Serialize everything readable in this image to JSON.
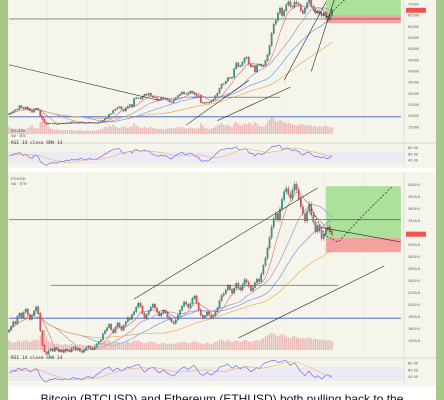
{
  "caption": "Bitcoin (BTCUSD) and Ethereum (ETHUSD) both pulling back to the",
  "colors": {
    "up": "#26a69a",
    "down": "#ef5350",
    "target_zone": "#6fcf5a",
    "stop_zone": "#f26b6b",
    "channel": "#222222",
    "hline_blue": "#3b5bc4",
    "ma_orange": "#f0a040",
    "ma_red": "#e06070",
    "ma_purple": "#9b7fd0",
    "ma_blue": "#5b8ee6",
    "rsi": "#5a5af0",
    "volume": "#e8a8a8",
    "panel_bg": "#f6f5ec"
  },
  "chart_data": [
    {
      "type": "candlestick",
      "symbol": "BTCUSD",
      "legend_lines": [
        "BTCUSD",
        "Vol · BTC"
      ],
      "rsi_label": "RSI 14 close SMA 14",
      "axis_ticks": [
        "70000",
        "65000",
        "60000",
        "55000",
        "50000",
        "45000",
        "40000",
        "35000",
        "30000",
        "25000",
        "20000",
        "15000"
      ],
      "rsi_ticks": [
        "80.00",
        "60.00",
        "40.00"
      ],
      "ylim": [
        12000,
        72000
      ],
      "closes": [
        21000,
        21500,
        22300,
        22800,
        23100,
        24600,
        23800,
        23300,
        24100,
        23100,
        22400,
        21800,
        22900,
        23500,
        22700,
        20100,
        18600,
        17200,
        16400,
        16900,
        16700,
        16800,
        16500,
        16300,
        16700,
        16900,
        16600,
        16900,
        17100,
        16800,
        17400,
        16900,
        17100,
        16800,
        17400,
        17200,
        16900,
        16900,
        17200,
        17100,
        16900,
        17000,
        16800,
        17400,
        17600,
        18100,
        18900,
        19200,
        20800,
        21100,
        22600,
        23100,
        23800,
        24200,
        23000,
        22300,
        23700,
        24400,
        25200,
        24200,
        27800,
        28300,
        28100,
        27700,
        28900,
        29800,
        29400,
        30200,
        29000,
        28400,
        28200,
        27500,
        27300,
        28300,
        27700,
        27900,
        27100,
        26400,
        26100,
        27300,
        28200,
        29200,
        29800,
        30800,
        30100,
        29900,
        30400,
        31200,
        30600,
        29800,
        29200,
        29100,
        26100,
        25800,
        26100,
        25900,
        26200,
        26800,
        27500,
        29100,
        30300,
        32400,
        34300,
        34500,
        35600,
        37200,
        36900,
        37300,
        41200,
        43800,
        42200,
        42600,
        44100,
        45900,
        46400,
        43200,
        42100,
        42600,
        39800,
        42900,
        43200,
        42400,
        42800,
        44800,
        47400,
        51500,
        57100,
        61200,
        62800,
        66100,
        68400,
        64900,
        67200,
        69800,
        71200,
        69100,
        68900,
        71100,
        70300,
        69800,
        67200,
        66100,
        68400,
        70600,
        72100,
        69200,
        67800,
        66200,
        67000,
        65800,
        64900,
        66400,
        64300,
        63200,
        65100,
        67400
      ],
      "volume": [
        12,
        10,
        9,
        8,
        7,
        11,
        9,
        8,
        8,
        10,
        12,
        15,
        11,
        9,
        10,
        20,
        24,
        30,
        18,
        12,
        9,
        8,
        7,
        8,
        7,
        6,
        6,
        7,
        6,
        6,
        7,
        6,
        5,
        6,
        7,
        6,
        5,
        5,
        6,
        5,
        5,
        6,
        6,
        7,
        8,
        9,
        12,
        11,
        14,
        12,
        15,
        12,
        11,
        10,
        12,
        13,
        11,
        10,
        12,
        13,
        18,
        14,
        12,
        11,
        10,
        12,
        10,
        11,
        12,
        10,
        9,
        9,
        8,
        9,
        8,
        8,
        9,
        10,
        9,
        10,
        11,
        12,
        11,
        12,
        10,
        9,
        10,
        11,
        10,
        9,
        9,
        10,
        18,
        15,
        10,
        9,
        8,
        9,
        10,
        12,
        14,
        16,
        18,
        15,
        14,
        16,
        13,
        12,
        18,
        20,
        17,
        14,
        15,
        17,
        16,
        19,
        18,
        15,
        20,
        17,
        14,
        13,
        12,
        15,
        20,
        24,
        28,
        26,
        22,
        21,
        24,
        22,
        20,
        18,
        19,
        17,
        16,
        15,
        14,
        15,
        17,
        16,
        15,
        14,
        16,
        14,
        13,
        14,
        12,
        13,
        12,
        13,
        14,
        12,
        11,
        12
      ],
      "rsi": [
        55,
        58,
        60,
        62,
        63,
        66,
        60,
        57,
        60,
        55,
        50,
        47,
        55,
        58,
        52,
        38,
        32,
        28,
        25,
        30,
        32,
        34,
        33,
        32,
        36,
        38,
        37,
        40,
        42,
        40,
        45,
        42,
        44,
        42,
        47,
        46,
        44,
        44,
        47,
        46,
        44,
        45,
        44,
        50,
        52,
        56,
        62,
        64,
        70,
        72,
        76,
        77,
        78,
        78,
        68,
        62,
        66,
        68,
        70,
        64,
        74,
        75,
        73,
        70,
        72,
        74,
        70,
        72,
        64,
        60,
        58,
        55,
        54,
        58,
        55,
        56,
        52,
        48,
        46,
        52,
        57,
        61,
        63,
        66,
        62,
        60,
        62,
        65,
        61,
        56,
        52,
        51,
        40,
        38,
        40,
        39,
        42,
        47,
        52,
        60,
        66,
        72,
        76,
        76,
        78,
        80,
        78,
        78,
        82,
        84,
        76,
        74,
        76,
        78,
        78,
        66,
        62,
        63,
        55,
        62,
        63,
        60,
        61,
        66,
        72,
        78,
        84,
        86,
        86,
        88,
        88,
        76,
        78,
        80,
        80,
        74,
        72,
        75,
        72,
        70,
        62,
        58,
        63,
        66,
        68,
        60,
        56,
        52,
        54,
        51,
        49,
        53,
        48,
        46,
        51,
        56
      ],
      "channel_lines": [
        {
          "x": [
            132,
            152
          ],
          "y": [
            36000,
            71000
          ]
        },
        {
          "x": [
            145,
            156
          ],
          "y": [
            40000,
            72000
          ]
        },
        {
          "x": [
            85,
            115
          ],
          "y": [
            16000,
            36000
          ]
        },
        {
          "x": [
            100,
            135
          ],
          "y": [
            18000,
            33000
          ]
        },
        {
          "x": [
            0,
            72
          ],
          "y": [
            43000,
            27000
          ]
        }
      ],
      "hlines": [
        {
          "y": 28500,
          "x_from": 86,
          "x_to": 130,
          "color": "channel"
        },
        {
          "y": 63500,
          "x_from": 0,
          "x_to": 188,
          "color": "channel"
        },
        {
          "y": 19700,
          "x_from": 0,
          "x_to": 188,
          "color": "hline_blue"
        }
      ],
      "trade_plan": {
        "entry": 65200,
        "target": 73500,
        "stop": 61600,
        "x_from": 152,
        "x_to": 188
      },
      "projection": [
        [
          146,
          67200
        ],
        [
          150,
          66100
        ],
        [
          153,
          64300
        ],
        [
          157,
          68600
        ],
        [
          162,
          73000
        ]
      ]
    },
    {
      "type": "candlestick",
      "symbol": "ETHUSD",
      "legend_lines": [
        "ETHUSD",
        "Vol · ETH"
      ],
      "rsi_label": "RSI 14 close SMA 14",
      "axis_ticks": [
        "4000.0",
        "3800.0",
        "3600.0",
        "3400.0",
        "3200.0",
        "3000.0",
        "2800.0",
        "2600.0",
        "2400.0",
        "2200.0",
        "2000.0",
        "1800.0",
        "1600.0",
        "1400.0"
      ],
      "rsi_ticks": [
        "80.00",
        "60.00",
        "40.00"
      ],
      "ylim": [
        1250,
        4150
      ],
      "closes": [
        1580,
        1640,
        1720,
        1690,
        1810,
        1860,
        1790,
        1880,
        1930,
        1840,
        1760,
        1820,
        1900,
        1970,
        1860,
        1570,
        1330,
        1220,
        1180,
        1240,
        1270,
        1230,
        1290,
        1260,
        1220,
        1250,
        1210,
        1260,
        1240,
        1220,
        1280,
        1300,
        1250,
        1270,
        1230,
        1210,
        1250,
        1290,
        1310,
        1280,
        1260,
        1300,
        1350,
        1390,
        1420,
        1520,
        1570,
        1620,
        1680,
        1590,
        1540,
        1630,
        1700,
        1640,
        1580,
        1660,
        1720,
        1790,
        1760,
        1840,
        1890,
        1960,
        2030,
        1980,
        1860,
        1780,
        1840,
        1900,
        1960,
        2010,
        1950,
        1880,
        1820,
        1860,
        1910,
        1870,
        1800,
        1760,
        1720,
        1690,
        1750,
        1830,
        1910,
        1980,
        2050,
        2010,
        1960,
        2020,
        2110,
        2150,
        2030,
        1920,
        1830,
        1780,
        1820,
        1880,
        1830,
        1780,
        1820,
        1890,
        1950,
        2070,
        2160,
        2190,
        2250,
        2320,
        2260,
        2200,
        2280,
        2360,
        2290,
        2250,
        2340,
        2420,
        2380,
        2310,
        2240,
        2290,
        2370,
        2430,
        2390,
        2520,
        2660,
        2780,
        2950,
        3120,
        3300,
        3440,
        3520,
        3420,
        3600,
        3760,
        3890,
        3940,
        3850,
        3780,
        3910,
        4010,
        3920,
        3780,
        3640,
        3520,
        3400,
        3560,
        3680,
        3500,
        3380,
        3220,
        3320,
        3240,
        3110,
        3180,
        3260,
        3300,
        3220,
        3180
      ],
      "volume": [
        14,
        12,
        11,
        12,
        13,
        15,
        12,
        14,
        15,
        13,
        12,
        14,
        15,
        16,
        14,
        22,
        26,
        30,
        20,
        14,
        12,
        10,
        9,
        10,
        9,
        8,
        8,
        9,
        8,
        8,
        9,
        8,
        7,
        8,
        9,
        8,
        7,
        7,
        8,
        7,
        7,
        8,
        9,
        10,
        11,
        13,
        14,
        13,
        15,
        12,
        11,
        12,
        13,
        11,
        10,
        11,
        12,
        13,
        11,
        12,
        14,
        13,
        15,
        12,
        11,
        10,
        11,
        12,
        13,
        12,
        11,
        10,
        9,
        10,
        11,
        10,
        9,
        9,
        10,
        9,
        10,
        11,
        12,
        12,
        13,
        11,
        10,
        11,
        12,
        14,
        12,
        11,
        10,
        9,
        10,
        11,
        10,
        9,
        10,
        12,
        13,
        15,
        16,
        14,
        13,
        15,
        13,
        12,
        13,
        14,
        13,
        12,
        13,
        15,
        14,
        13,
        12,
        13,
        14,
        15,
        14,
        16,
        18,
        20,
        22,
        24,
        26,
        25,
        22,
        20,
        22,
        24,
        22,
        20,
        19,
        18,
        20,
        21,
        19,
        18,
        17,
        18,
        17,
        18,
        19,
        17,
        16,
        17,
        16,
        15,
        16,
        15,
        14,
        15,
        14,
        13
      ],
      "rsi": [
        52,
        56,
        60,
        58,
        64,
        66,
        60,
        64,
        66,
        60,
        55,
        58,
        62,
        65,
        58,
        42,
        33,
        28,
        26,
        31,
        34,
        32,
        37,
        35,
        32,
        34,
        31,
        35,
        34,
        32,
        37,
        39,
        35,
        37,
        34,
        32,
        36,
        40,
        42,
        40,
        38,
        42,
        47,
        51,
        54,
        62,
        65,
        67,
        70,
        62,
        57,
        63,
        67,
        62,
        57,
        62,
        66,
        70,
        67,
        71,
        73,
        75,
        77,
        72,
        62,
        55,
        60,
        64,
        67,
        69,
        64,
        58,
        53,
        56,
        60,
        57,
        51,
        48,
        45,
        43,
        49,
        56,
        62,
        66,
        70,
        66,
        62,
        66,
        72,
        74,
        64,
        55,
        48,
        45,
        49,
        54,
        50,
        46,
        50,
        56,
        60,
        68,
        72,
        73,
        75,
        78,
        72,
        66,
        70,
        74,
        68,
        64,
        68,
        72,
        68,
        62,
        56,
        59,
        64,
        68,
        64,
        72,
        78,
        82,
        84,
        86,
        88,
        88,
        88,
        82,
        85,
        87,
        88,
        88,
        80,
        74,
        78,
        81,
        74,
        64,
        56,
        50,
        44,
        52,
        58,
        48,
        43,
        38,
        44,
        40,
        35,
        40,
        45,
        47,
        42,
        40
      ],
      "channel_lines": [
        {
          "x": [
            60,
            148
          ],
          "y": [
            2100,
            3950
          ]
        },
        {
          "x": [
            110,
            180
          ],
          "y": [
            1450,
            2650
          ]
        },
        {
          "x": [
            150,
            188
          ],
          "y": [
            3290,
            3050
          ]
        }
      ],
      "hlines": [
        {
          "y": 3420,
          "x_from": 0,
          "x_to": 188,
          "color": "channel"
        },
        {
          "y": 2330,
          "x_from": 20,
          "x_to": 158,
          "color": "channel"
        },
        {
          "y": 1780,
          "x_from": 0,
          "x_to": 188,
          "color": "hline_blue"
        }
      ],
      "trade_plan": {
        "entry": 3120,
        "target": 3980,
        "stop": 2880,
        "x_from": 152,
        "x_to": 188
      },
      "projection": [
        [
          145,
          3600
        ],
        [
          152,
          3150
        ],
        [
          158,
          3050
        ],
        [
          170,
          3500
        ],
        [
          184,
          3980
        ]
      ]
    }
  ]
}
